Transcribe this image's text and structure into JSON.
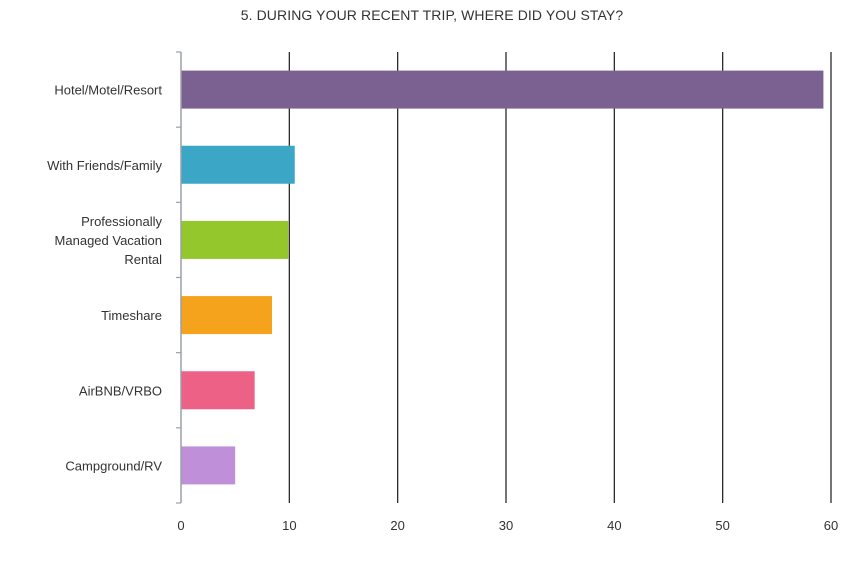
{
  "chart_data": {
    "type": "bar",
    "orientation": "horizontal",
    "title": "5. DURING YOUR RECENT TRIP, WHERE DID YOU STAY?",
    "xlabel": "",
    "ylabel": "",
    "categories": [
      "Hotel/Motel/Resort",
      "With Friends/Family",
      "Professionally Managed Vacation Rental",
      "Timeshare",
      "AirBNB/VRBO",
      "Campground/RV"
    ],
    "category_lines": [
      [
        "Hotel/Motel/Resort"
      ],
      [
        "With Friends/Family"
      ],
      [
        "Professionally",
        "Managed Vacation",
        "Rental"
      ],
      [
        "Timeshare"
      ],
      [
        "AirBNB/VRBO"
      ],
      [
        "Campground/RV"
      ]
    ],
    "values": [
      59.3,
      10.5,
      9.9,
      8.4,
      6.8,
      5.0
    ],
    "colors": [
      "#7b6191",
      "#3ba6c6",
      "#93c72c",
      "#f5a31d",
      "#ed6186",
      "#bf8fda"
    ],
    "xlim": [
      0,
      60
    ],
    "xticks": [
      "0",
      "10",
      "20",
      "30",
      "40",
      "50",
      "60"
    ],
    "grid": true,
    "legend": "none"
  }
}
